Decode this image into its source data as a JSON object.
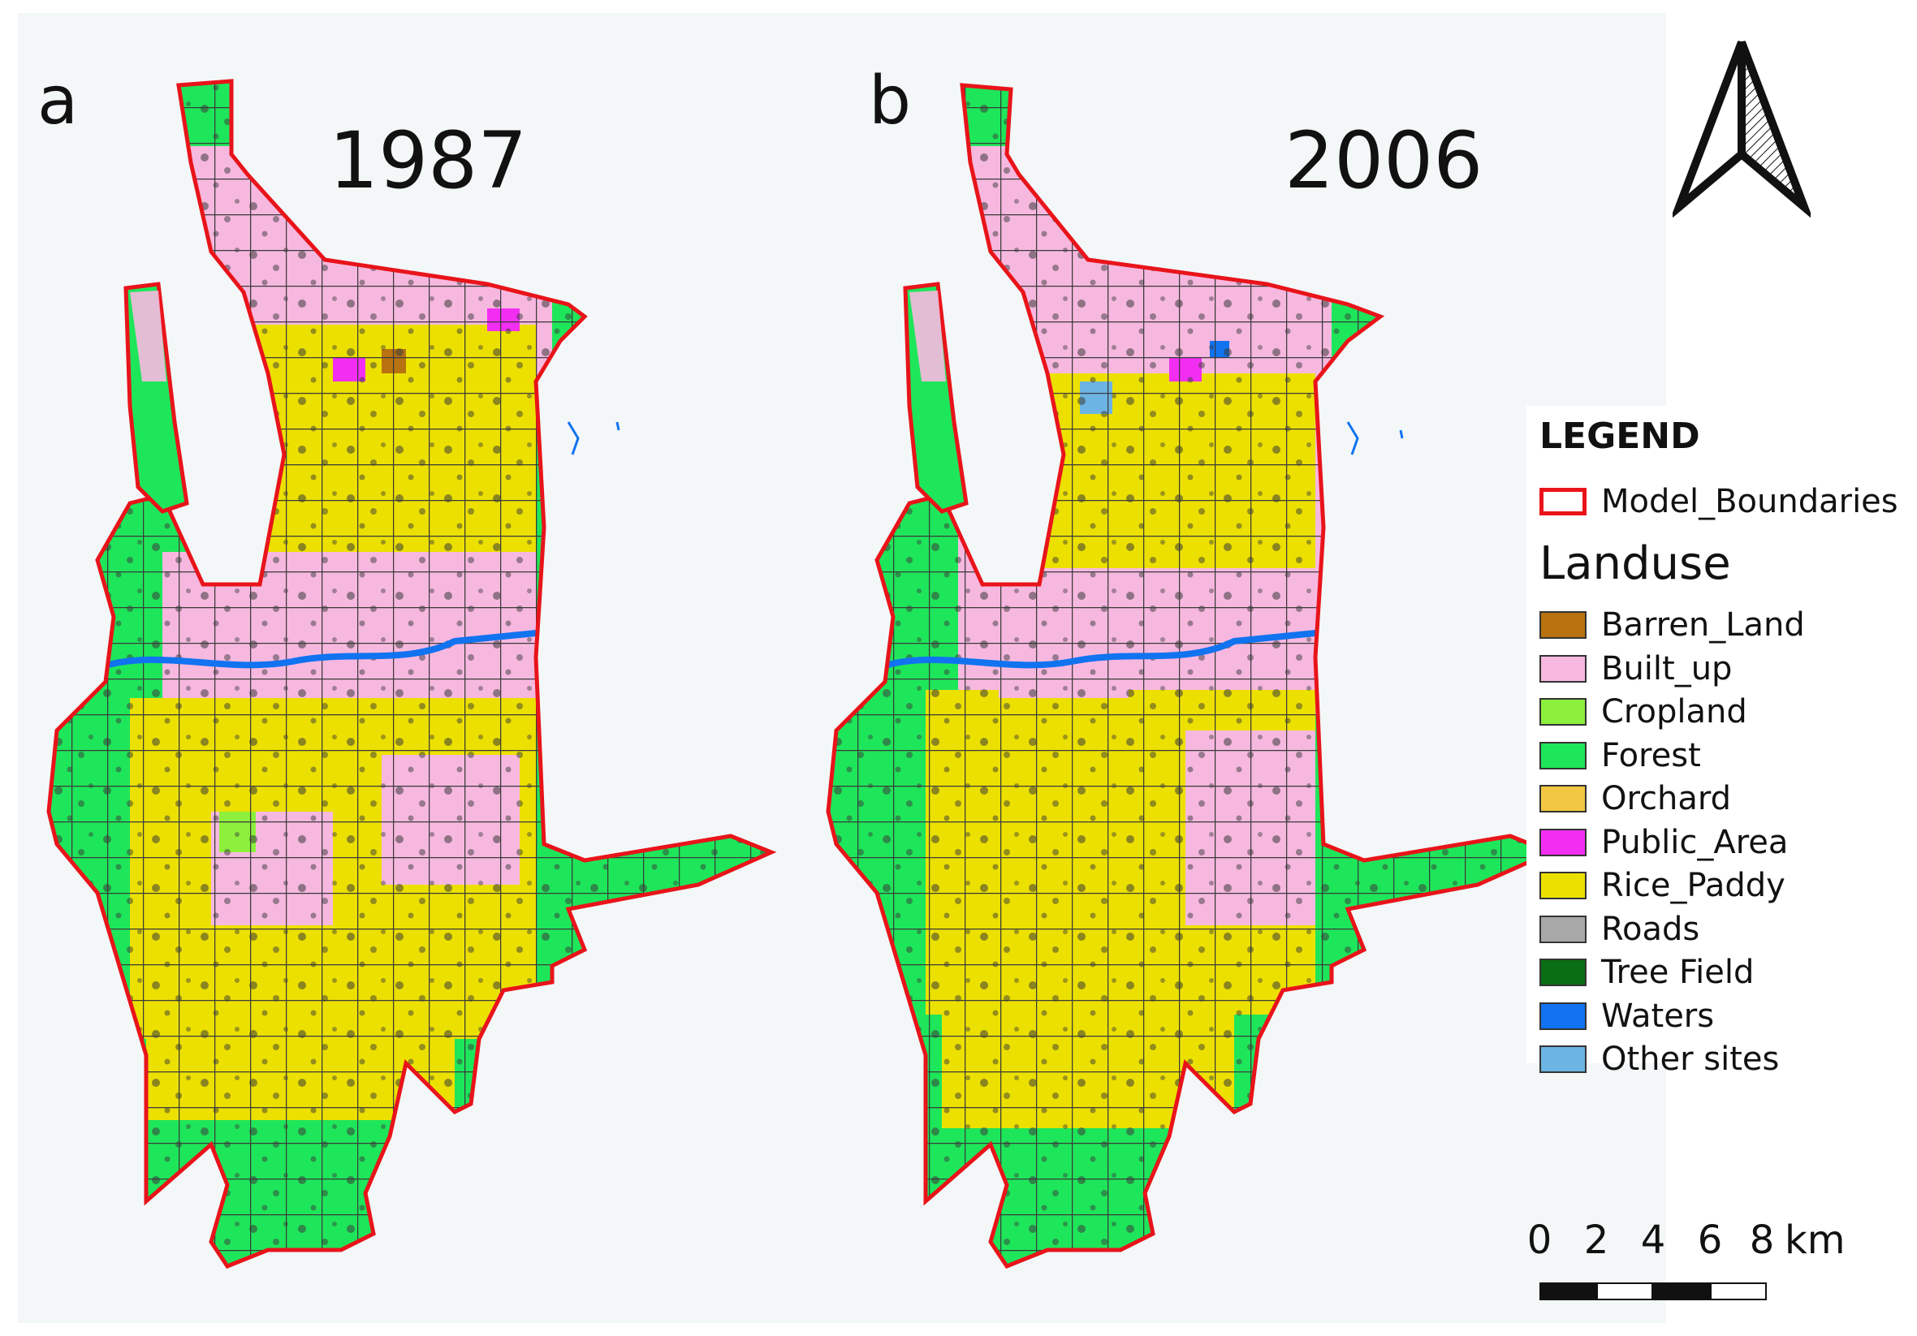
{
  "panels": [
    {
      "letter": "a",
      "year": "1987"
    },
    {
      "letter": "b",
      "year": "2006"
    }
  ],
  "legend": {
    "title": "LEGEND",
    "boundary_label": "Model_Boundaries",
    "boundary_color": "#e8141a",
    "landuse_title": "Landuse",
    "classes": [
      {
        "label": "Barren_Land",
        "color": "#b8720f"
      },
      {
        "label": "Built_up",
        "color": "#f7b8e0"
      },
      {
        "label": "Cropland",
        "color": "#8cf03c"
      },
      {
        "label": "Forest",
        "color": "#1ee65a"
      },
      {
        "label": "Orchard",
        "color": "#f2c843"
      },
      {
        "label": "Public_Area",
        "color": "#f22ef2"
      },
      {
        "label": "Rice_Paddy",
        "color": "#ece000"
      },
      {
        "label": "Roads",
        "color": "#a8a8a8"
      },
      {
        "label": "Tree Field",
        "color": "#0a6e14"
      },
      {
        "label": "Waters",
        "color": "#1173f0"
      },
      {
        "label": "Other sites",
        "color": "#6cb4e4"
      }
    ]
  },
  "scalebar": {
    "ticks": [
      "0",
      "2",
      "4",
      "6",
      "8"
    ],
    "unit": "km"
  },
  "north_arrow": {
    "icon": "north-arrow-icon"
  }
}
